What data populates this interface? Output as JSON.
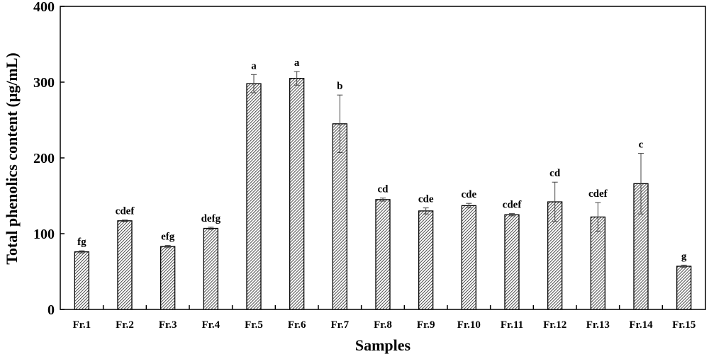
{
  "chart_data": {
    "type": "bar",
    "title": "",
    "xlabel": "Samples",
    "ylabel": "Total phenolics content (μg/mL)",
    "ylim": [
      0,
      400
    ],
    "yticks": [
      0,
      100,
      200,
      300,
      400
    ],
    "grid": false,
    "bar_fill": "diagonal-hatch",
    "bar_color": "#000000",
    "categories": [
      "Fr.1",
      "Fr.2",
      "Fr.3",
      "Fr.4",
      "Fr.5",
      "Fr.6",
      "Fr.7",
      "Fr.8",
      "Fr.9",
      "Fr.10",
      "Fr.11",
      "Fr.12",
      "Fr.13",
      "Fr.14",
      "Fr.15"
    ],
    "values": [
      76,
      117,
      83,
      107,
      298,
      305,
      245,
      145,
      130,
      137,
      125,
      142,
      122,
      166,
      57
    ],
    "errors": [
      1.5,
      1,
      1.5,
      1.5,
      12,
      9,
      38,
      2,
      4,
      3,
      1.5,
      26,
      19,
      40,
      1.5
    ],
    "annotations": [
      "fg",
      "cdef",
      "efg",
      "defg",
      "a",
      "a",
      "b",
      "cd",
      "cde",
      "cde",
      "cdef",
      "cd",
      "cdef",
      "c",
      "g"
    ]
  }
}
